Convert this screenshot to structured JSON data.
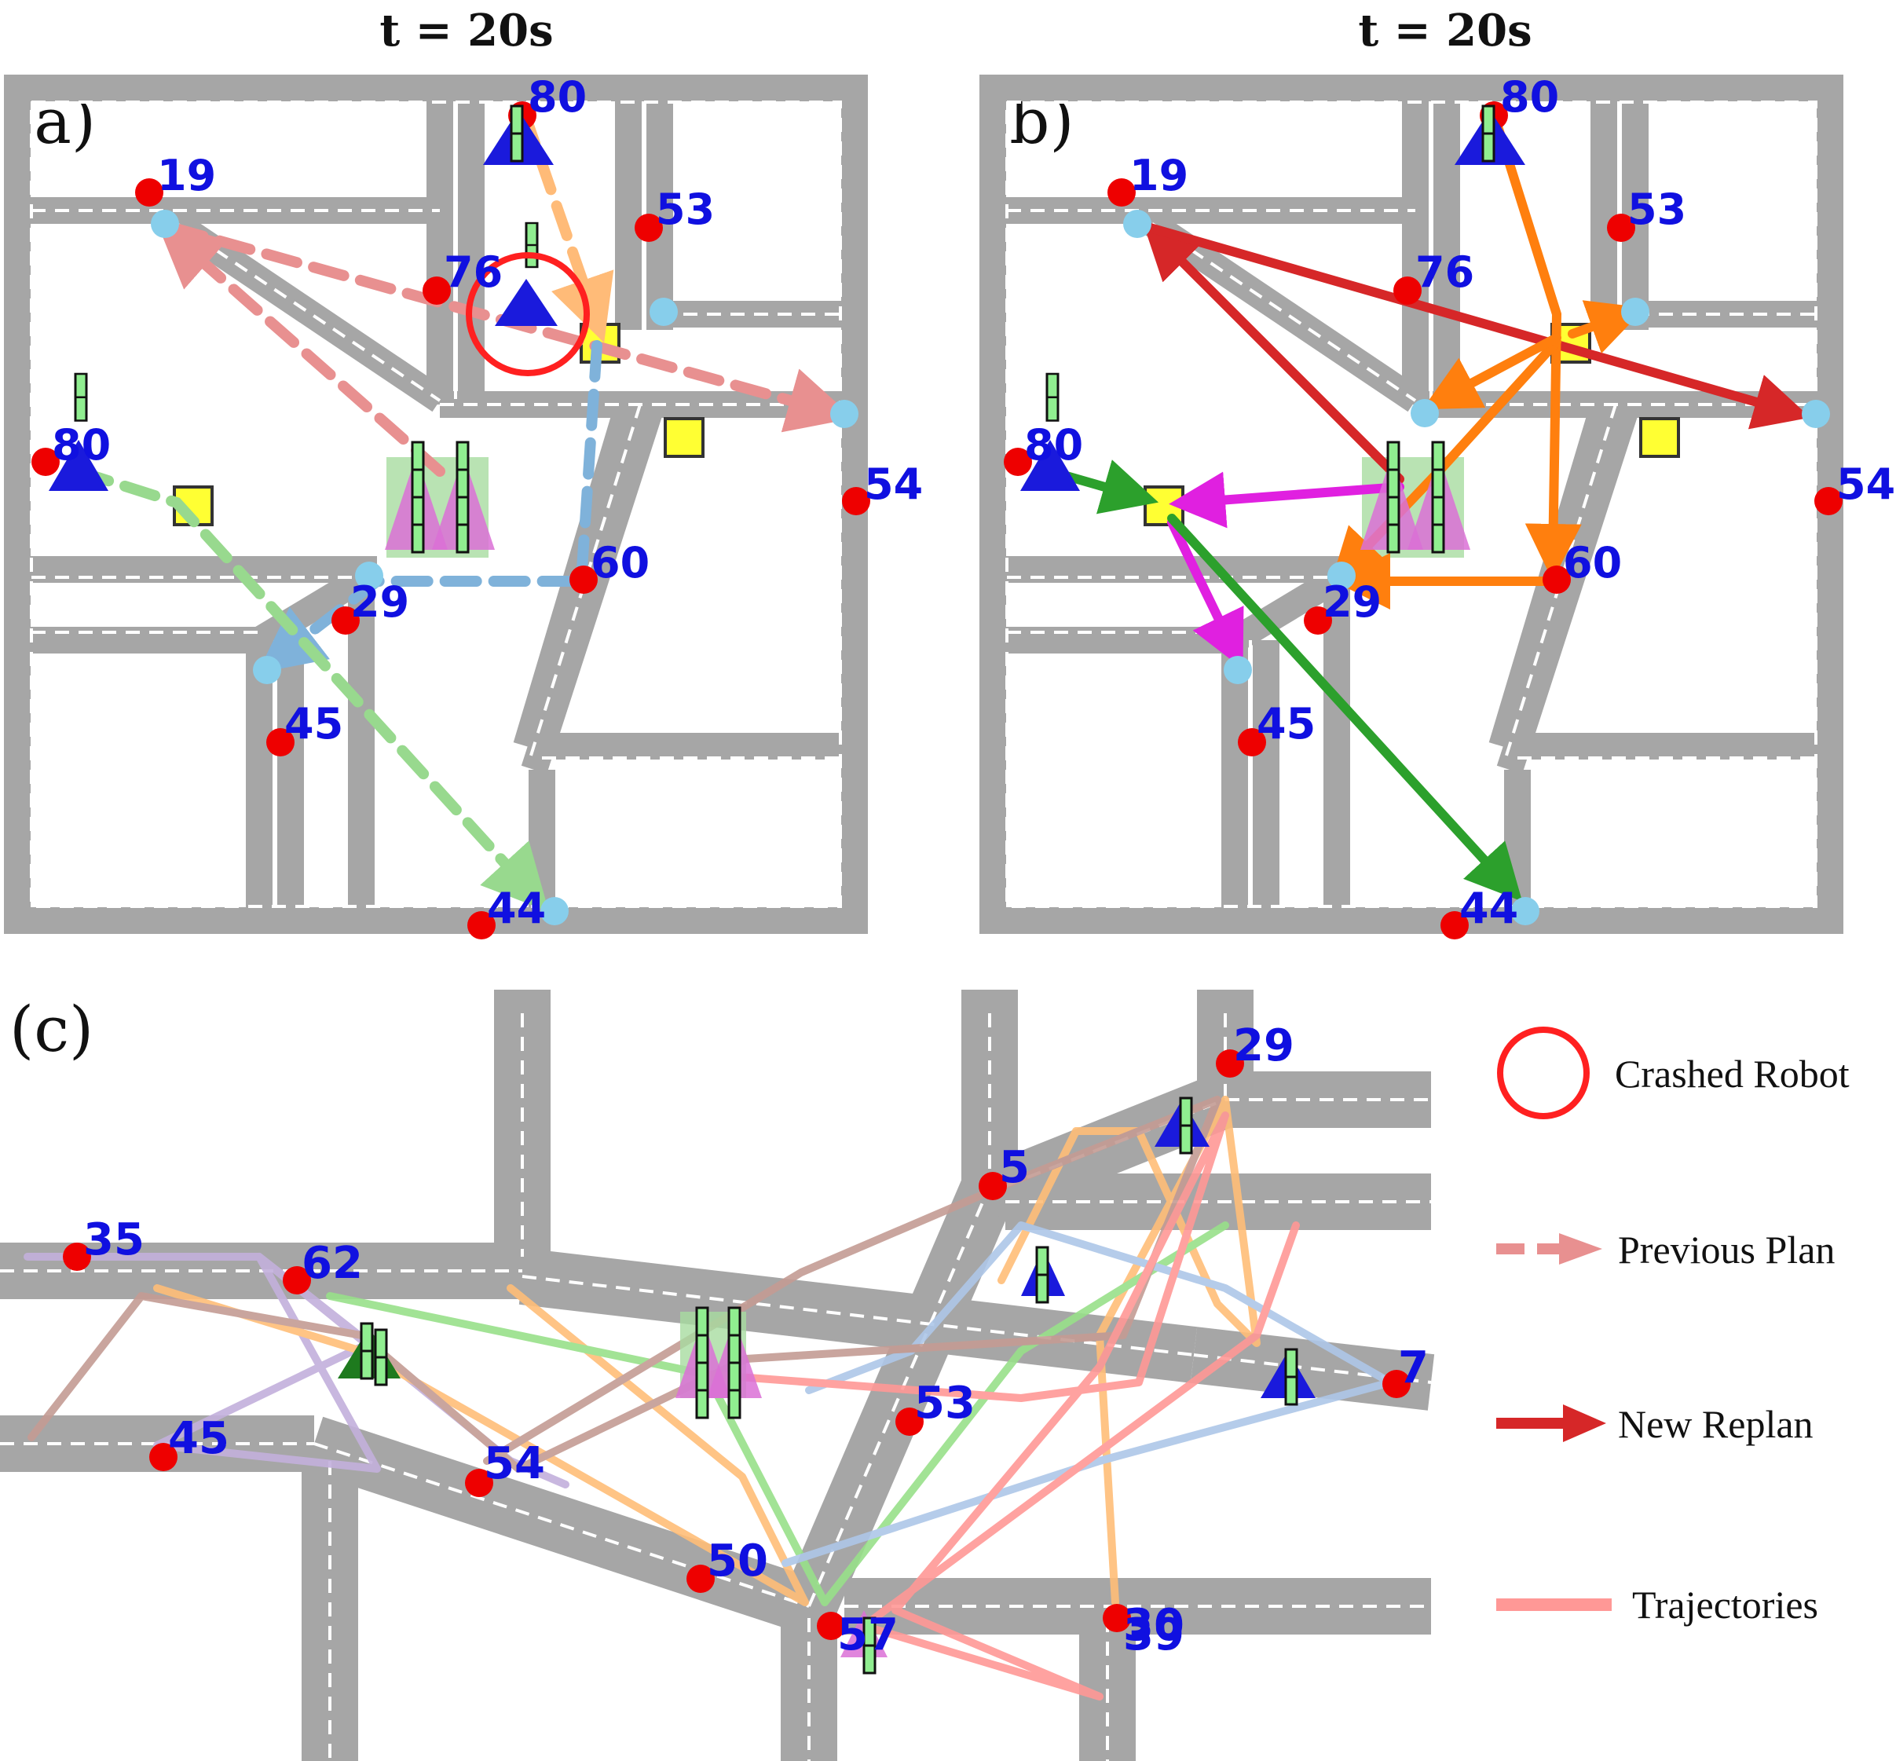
{
  "titles": {
    "a": "t = 20s",
    "b": "t = 20s"
  },
  "panel_labels": {
    "a": "(a)",
    "b": "(b)",
    "c": "(c)"
  },
  "panel_a": {
    "task_labels": [
      "80",
      "19",
      "53",
      "76",
      "80",
      "54",
      "60",
      "29",
      "45",
      "44"
    ],
    "annotation": "crashed robot marker around robot near task 76"
  },
  "panel_b": {
    "task_labels": [
      "80",
      "19",
      "53",
      "76",
      "80",
      "54",
      "60",
      "29",
      "45",
      "44"
    ]
  },
  "panel_c": {
    "task_labels": [
      "29",
      "5",
      "35",
      "62",
      "7",
      "53",
      "45",
      "54",
      "50",
      "57",
      "30",
      "39"
    ]
  },
  "legend": {
    "crashed": "Crashed Robot",
    "previous": "Previous Plan",
    "replan": "New Replan",
    "trajectories": "Trajectories"
  },
  "colors": {
    "road": "#a6a6a6",
    "task": "#ee0000",
    "robot": "#1a1adc",
    "depot": "#ffff33",
    "waypoint": "#87ceeb",
    "stack": "#da70d6",
    "crash": "#ff2020",
    "replan": "#d62728",
    "previous": "#e89090",
    "trajectory": "#ff9090"
  }
}
